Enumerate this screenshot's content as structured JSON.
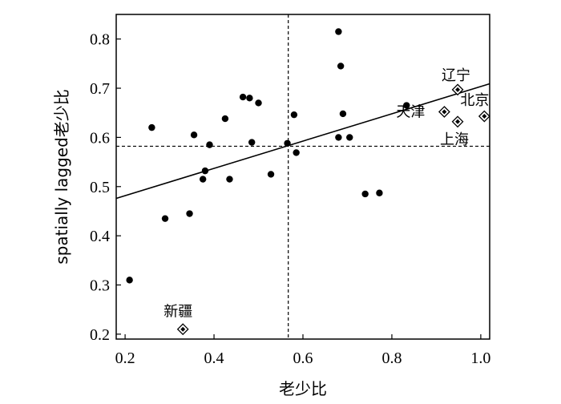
{
  "chart_data": {
    "type": "scatter",
    "title": "",
    "xlabel": "老少比",
    "ylabel": "spatially lagged老少比",
    "xlim": [
      0.18,
      1.02
    ],
    "ylim": [
      0.19,
      0.85
    ],
    "x_ticks": [
      0.2,
      0.4,
      0.6,
      0.8,
      1.0
    ],
    "x_tick_labels": [
      "0.2",
      "0.4",
      "0.6",
      "0.8",
      "1.0"
    ],
    "y_ticks": [
      0.2,
      0.3,
      0.4,
      0.5,
      0.6,
      0.7,
      0.8
    ],
    "y_tick_labels": [
      "0.2",
      "0.3",
      "0.4",
      "0.5",
      "0.6",
      "0.7",
      "0.8"
    ],
    "grid": false,
    "mean_x": 0.567,
    "mean_y": 0.582,
    "regression_line": {
      "x": [
        0.18,
        1.02
      ],
      "y": [
        0.476,
        0.709
      ]
    },
    "points": [
      {
        "x": 0.21,
        "y": 0.31
      },
      {
        "x": 0.26,
        "y": 0.62
      },
      {
        "x": 0.29,
        "y": 0.435
      },
      {
        "x": 0.345,
        "y": 0.445
      },
      {
        "x": 0.355,
        "y": 0.605
      },
      {
        "x": 0.375,
        "y": 0.515
      },
      {
        "x": 0.38,
        "y": 0.532
      },
      {
        "x": 0.39,
        "y": 0.585
      },
      {
        "x": 0.425,
        "y": 0.638
      },
      {
        "x": 0.435,
        "y": 0.515
      },
      {
        "x": 0.465,
        "y": 0.682
      },
      {
        "x": 0.48,
        "y": 0.68
      },
      {
        "x": 0.485,
        "y": 0.59
      },
      {
        "x": 0.5,
        "y": 0.67
      },
      {
        "x": 0.528,
        "y": 0.525
      },
      {
        "x": 0.565,
        "y": 0.588
      },
      {
        "x": 0.58,
        "y": 0.646
      },
      {
        "x": 0.585,
        "y": 0.569
      },
      {
        "x": 0.68,
        "y": 0.815
      },
      {
        "x": 0.685,
        "y": 0.745
      },
      {
        "x": 0.68,
        "y": 0.6
      },
      {
        "x": 0.69,
        "y": 0.648
      },
      {
        "x": 0.705,
        "y": 0.6
      },
      {
        "x": 0.74,
        "y": 0.485
      },
      {
        "x": 0.772,
        "y": 0.487
      },
      {
        "x": 0.833,
        "y": 0.665
      }
    ],
    "highlighted": [
      {
        "label": "辽宁",
        "x": 0.948,
        "y": 0.697
      },
      {
        "label": "北京",
        "x": 1.008,
        "y": 0.643
      },
      {
        "label": "天津",
        "x": 0.918,
        "y": 0.652
      },
      {
        "label": "上海",
        "x": 0.948,
        "y": 0.632
      },
      {
        "label": "新疆",
        "x": 0.33,
        "y": 0.21
      }
    ]
  }
}
